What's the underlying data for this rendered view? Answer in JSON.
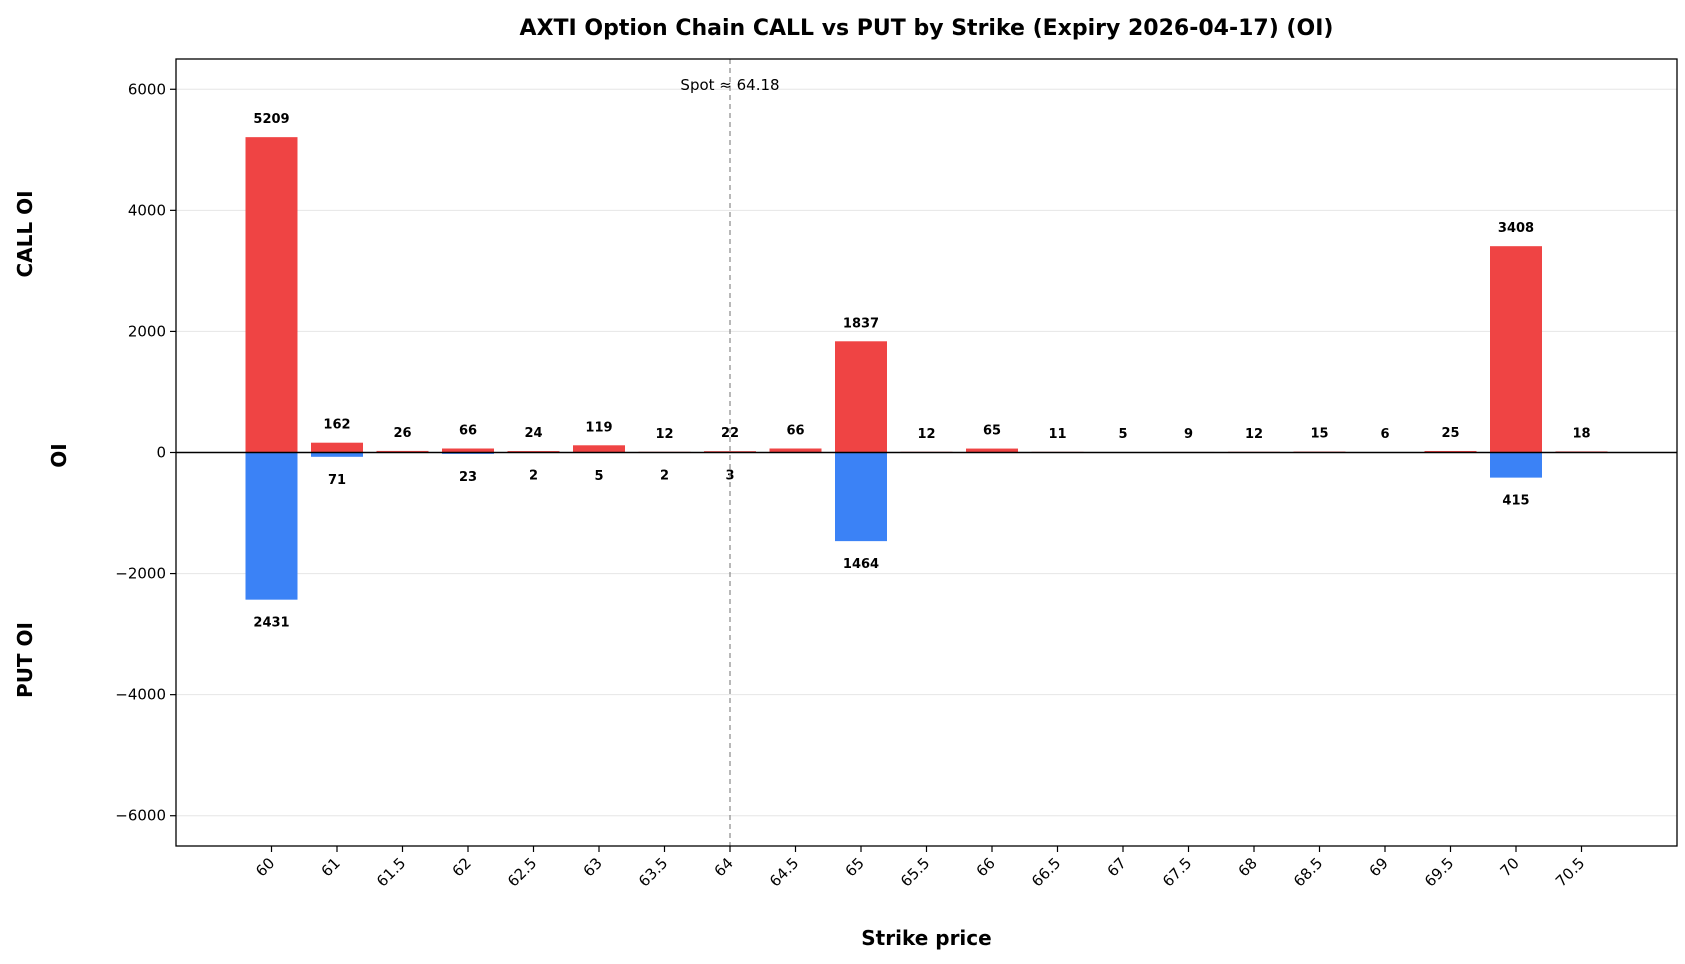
{
  "chart_data": {
    "type": "bar",
    "title": "AXTI Option Chain CALL vs PUT by Strike (Expiry 2026-04-17) (OI)",
    "xlabel": "Strike price",
    "ylabel": "OI",
    "upper_label": "CALL OI",
    "lower_label": "PUT OI",
    "ylim": [
      -6500,
      6500
    ],
    "yticks": [
      -6000,
      -4000,
      -2000,
      0,
      2000,
      4000,
      6000
    ],
    "ytick_labels": [
      "−6000",
      "−4000",
      "−2000",
      "0",
      "2000",
      "4000",
      "6000"
    ],
    "grid": true,
    "categories": [
      "60",
      "61",
      "61.5",
      "62",
      "62.5",
      "63",
      "63.5",
      "64",
      "64.5",
      "65",
      "65.5",
      "66",
      "66.5",
      "67",
      "67.5",
      "68",
      "68.5",
      "69",
      "69.5",
      "70",
      "70.5"
    ],
    "series": [
      {
        "role": "call",
        "color": "#ef4444",
        "values": [
          5209,
          162,
          26,
          66,
          24,
          119,
          12,
          22,
          66,
          1837,
          12,
          65,
          11,
          5,
          9,
          12,
          15,
          6,
          25,
          3408,
          18
        ]
      },
      {
        "role": "put",
        "color": "#3b82f6",
        "values": [
          2431,
          71,
          null,
          23,
          2,
          5,
          2,
          3,
          null,
          1464,
          null,
          null,
          null,
          null,
          null,
          null,
          null,
          null,
          null,
          415,
          null
        ]
      }
    ],
    "spot": {
      "value": 64.18,
      "label": "Spot ≈ 64.18"
    }
  }
}
